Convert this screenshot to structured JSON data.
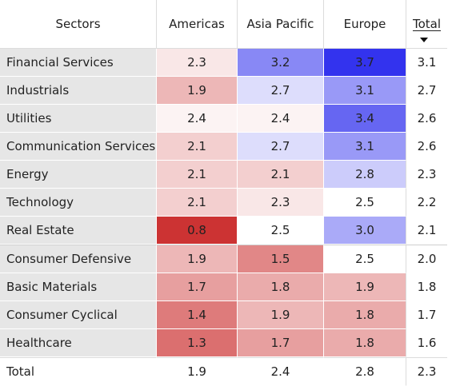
{
  "chart_data": {
    "type": "heatmap",
    "title": "",
    "row_header": "Sectors",
    "columns": [
      "Americas",
      "Asia Pacific",
      "Europe"
    ],
    "total_label": "Total",
    "sort": {
      "column": "Total",
      "direction": "descending"
    },
    "rows": [
      {
        "sector": "Financial Services",
        "values": [
          2.3,
          3.2,
          3.7
        ],
        "total": 3.1
      },
      {
        "sector": "Industrials",
        "values": [
          1.9,
          2.7,
          3.1
        ],
        "total": 2.7
      },
      {
        "sector": "Utilities",
        "values": [
          2.4,
          2.4,
          3.4
        ],
        "total": 2.6
      },
      {
        "sector": "Communication Services",
        "values": [
          2.1,
          2.7,
          3.1
        ],
        "total": 2.6
      },
      {
        "sector": "Energy",
        "values": [
          2.1,
          2.1,
          2.8
        ],
        "total": 2.3
      },
      {
        "sector": "Technology",
        "values": [
          2.1,
          2.3,
          2.5
        ],
        "total": 2.2
      },
      {
        "sector": "Real Estate",
        "values": [
          0.8,
          2.5,
          3.0
        ],
        "total": 2.1
      },
      {
        "sector": "Consumer Defensive",
        "values": [
          1.9,
          1.5,
          2.5
        ],
        "total": 2.0
      },
      {
        "sector": "Basic Materials",
        "values": [
          1.7,
          1.8,
          1.9
        ],
        "total": 1.8
      },
      {
        "sector": "Consumer Cyclical",
        "values": [
          1.4,
          1.9,
          1.8
        ],
        "total": 1.7
      },
      {
        "sector": "Healthcare",
        "values": [
          1.3,
          1.7,
          1.8
        ],
        "total": 1.6
      }
    ],
    "totals": {
      "values": [
        1.9,
        2.4,
        2.8
      ],
      "total": 2.3
    },
    "color_scale": {
      "low": "#cc3333",
      "mid": "#ffffff",
      "high": "#3333ee",
      "min": 0.8,
      "mid_value": 2.5,
      "max": 3.7
    }
  }
}
